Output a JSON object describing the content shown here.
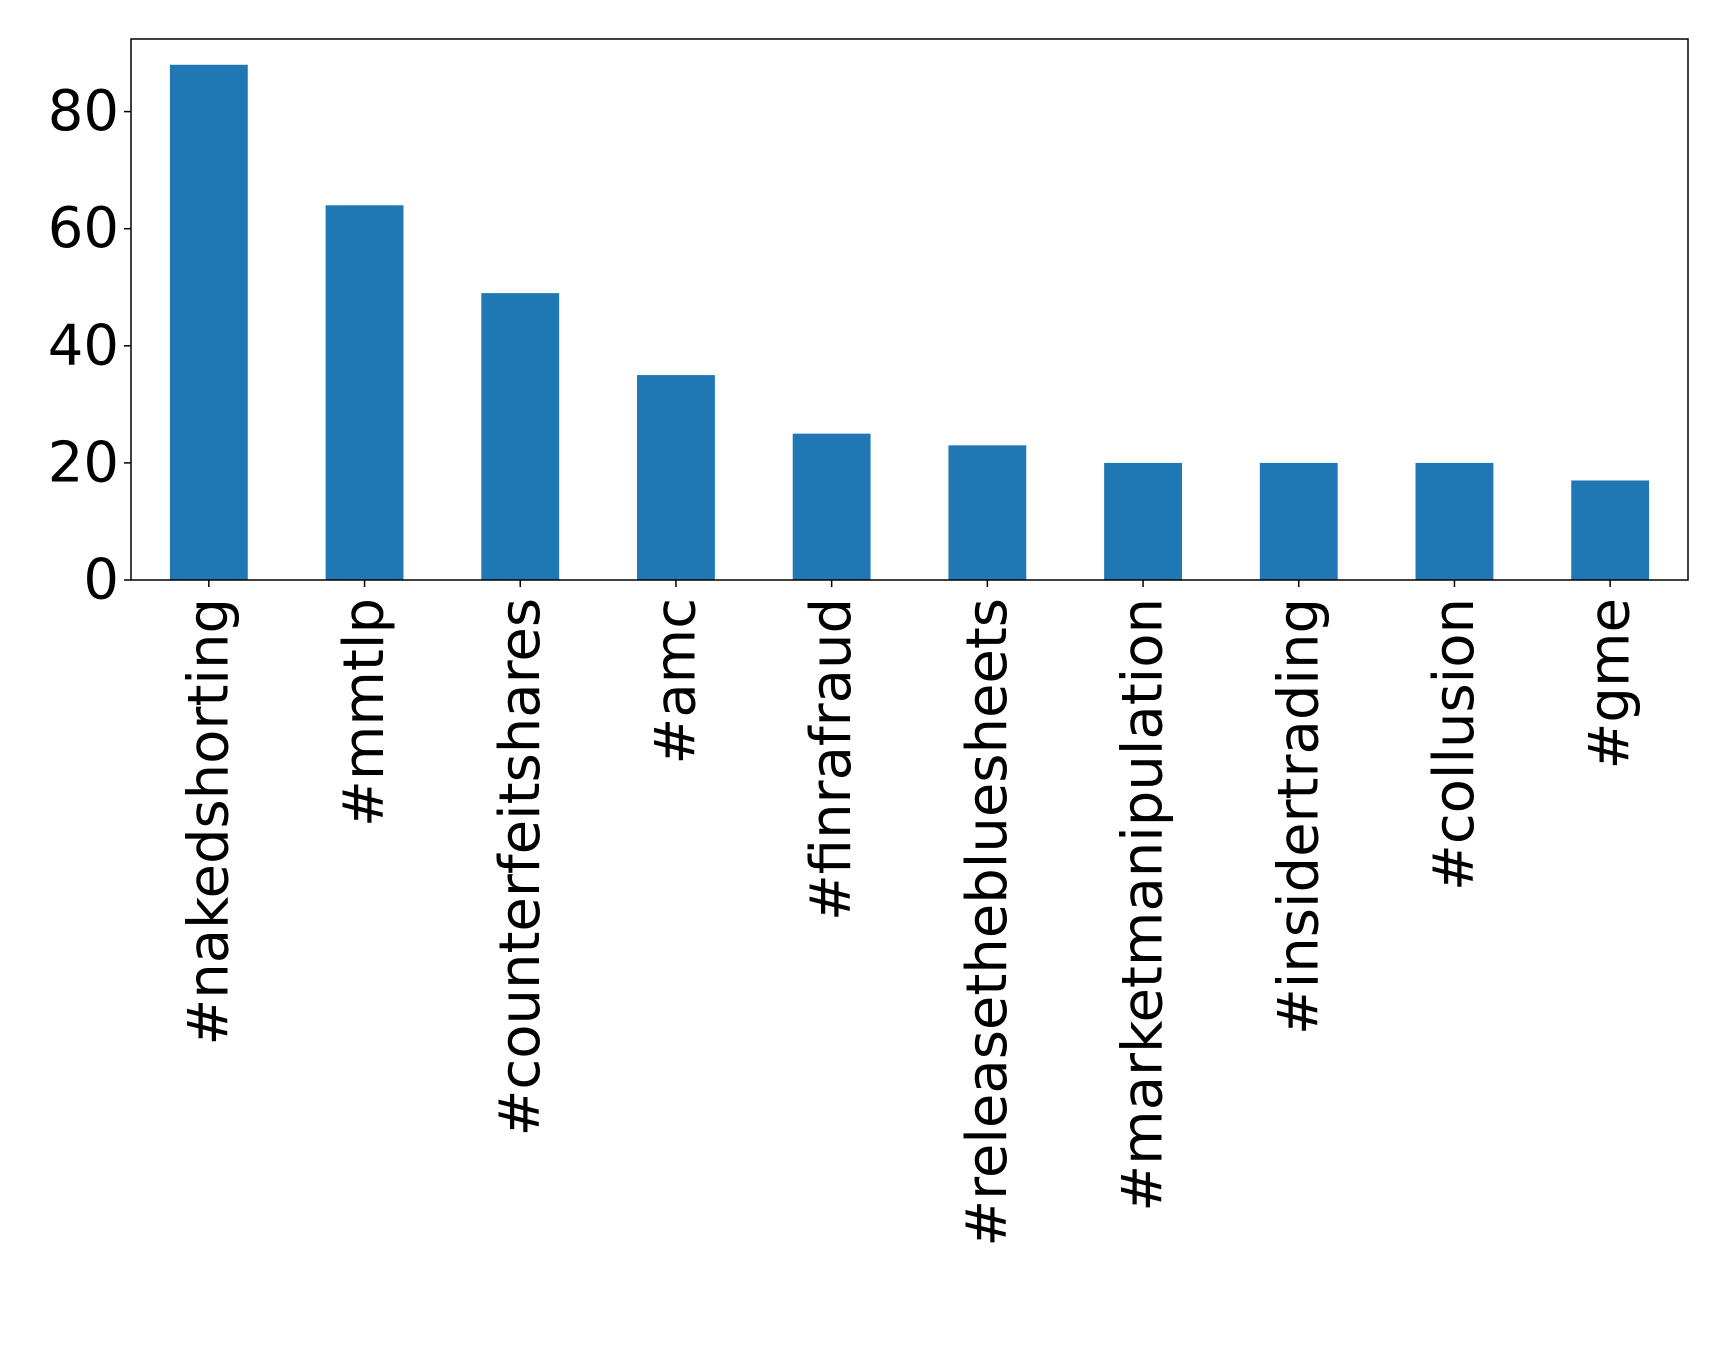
{
  "chart_data": {
    "type": "bar",
    "title": "",
    "xlabel": "",
    "ylabel": "",
    "categories": [
      "#nakedshorting",
      "#mmtlp",
      "#counterfeitshares",
      "#amc",
      "#finrafraud",
      "#releasethebluesheets",
      "#marketmanipulation",
      "#insidertrading",
      "#collusion",
      "#gme"
    ],
    "values": [
      88,
      64,
      49,
      35,
      25,
      23,
      20,
      20,
      20,
      17
    ],
    "ylim": [
      0,
      92.4
    ],
    "yticks": [
      0,
      20,
      40,
      60,
      80
    ],
    "bar_color": "#1f77b4",
    "grid": false,
    "legend": "none"
  }
}
